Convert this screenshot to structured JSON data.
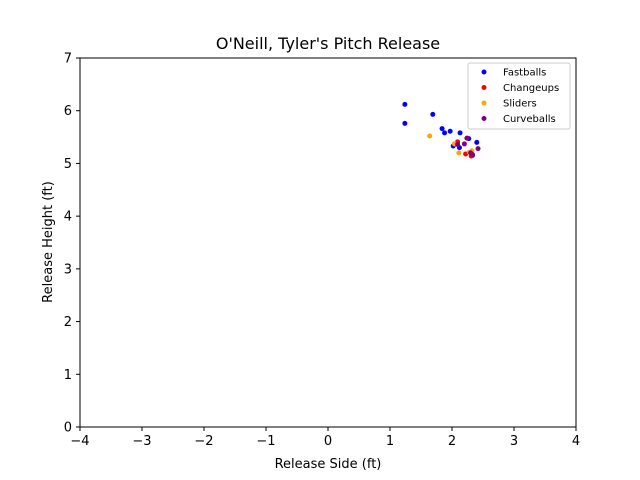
{
  "chart_data": {
    "type": "scatter",
    "title": "O'Neill, Tyler's Pitch Release",
    "xlabel": "Release Side (ft)",
    "ylabel": "Release Height (ft)",
    "xlim": [
      -4,
      4
    ],
    "ylim": [
      0,
      7
    ],
    "xticks": [
      "−4",
      "−3",
      "−2",
      "−1",
      "0",
      "1",
      "2",
      "3",
      "4"
    ],
    "xtick_values": [
      -4,
      -3,
      -2,
      -1,
      0,
      1,
      2,
      3,
      4
    ],
    "yticks": [
      "0",
      "1",
      "2",
      "3",
      "4",
      "5",
      "6",
      "7"
    ],
    "ytick_values": [
      0,
      1,
      2,
      3,
      4,
      5,
      6,
      7
    ],
    "grid": false,
    "legend_position": "top-right",
    "series": [
      {
        "name": "Fastballs",
        "color": "#0000ff",
        "points": [
          [
            1.24,
            6.12
          ],
          [
            1.24,
            5.76
          ],
          [
            1.69,
            5.93
          ],
          [
            1.84,
            5.66
          ],
          [
            1.88,
            5.58
          ],
          [
            1.97,
            5.61
          ],
          [
            2.13,
            5.58
          ],
          [
            2.02,
            5.33
          ],
          [
            2.12,
            5.3
          ],
          [
            2.27,
            5.47
          ],
          [
            2.4,
            5.4
          ],
          [
            2.33,
            5.15
          ]
        ]
      },
      {
        "name": "Changeups",
        "color": "#ff0000",
        "points": [
          [
            2.09,
            5.41
          ],
          [
            2.22,
            5.18
          ],
          [
            2.31,
            5.14
          ]
        ]
      },
      {
        "name": "Sliders",
        "color": "#ffa500",
        "points": [
          [
            1.64,
            5.52
          ],
          [
            2.04,
            5.37
          ],
          [
            2.11,
            5.2
          ],
          [
            2.28,
            5.21
          ],
          [
            2.32,
            5.24
          ]
        ]
      },
      {
        "name": "Curveballs",
        "color": "#800080",
        "points": [
          [
            2.09,
            5.36
          ],
          [
            2.2,
            5.37
          ],
          [
            2.24,
            5.48
          ],
          [
            2.3,
            5.2
          ],
          [
            2.42,
            5.28
          ],
          [
            2.33,
            5.17
          ]
        ]
      }
    ]
  }
}
